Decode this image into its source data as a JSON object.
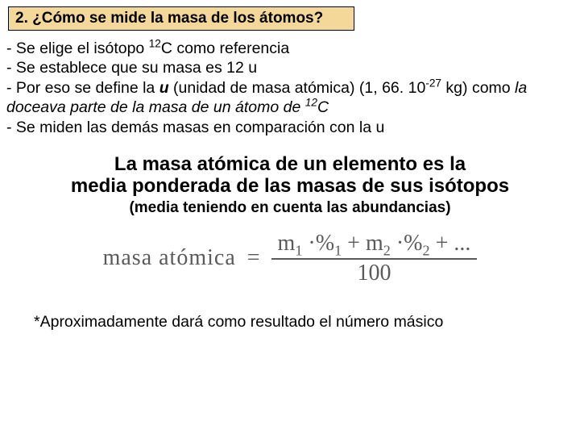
{
  "title": "2. ¿Cómo se mide la masa de los átomos?",
  "bullets": {
    "b1_pre": " - Se elige el isótopo ",
    "b1_sup": "12",
    "b1_post": "C como referencia",
    "b2": " - Se establece que su masa es 12 u",
    "b3_pre": " - Por eso se define la ",
    "b3_u": "u",
    "b3_mid": " (unidad de masa atómica) (1, 66. 10",
    "b3_exp": "-27",
    "b3_post": " kg) como ",
    "b3_ital_pre": "la doceava parte de la masa de un átomo de ",
    "b3_ital_sup": "12",
    "b3_ital_post": "C",
    "b4": " - Se miden las demás masas en comparación con la u"
  },
  "highlight": {
    "line1": "La masa atómica de un elemento es la",
    "line2": "media ponderada de las masas de sus isótopos",
    "sub": "(media teniendo en cuenta las abundancias)"
  },
  "formula": {
    "label": "masa   atómica",
    "eq": "=",
    "num_m1": "m",
    "num_s1": "1",
    "num_p1": " ·%",
    "num_ps1": "1",
    "num_plus1": " + ",
    "num_m2": "m",
    "num_s2": "2",
    "num_p2": " ·%",
    "num_ps2": "2",
    "num_tail": " + ...",
    "den": "100"
  },
  "footnote": "*Aproximadamente dará como resultado el número másico",
  "colors": {
    "title_bg": "#f4d89a",
    "title_border": "#000000",
    "text": "#000000",
    "formula_color": "#5a5a5a",
    "background": "#ffffff"
  }
}
